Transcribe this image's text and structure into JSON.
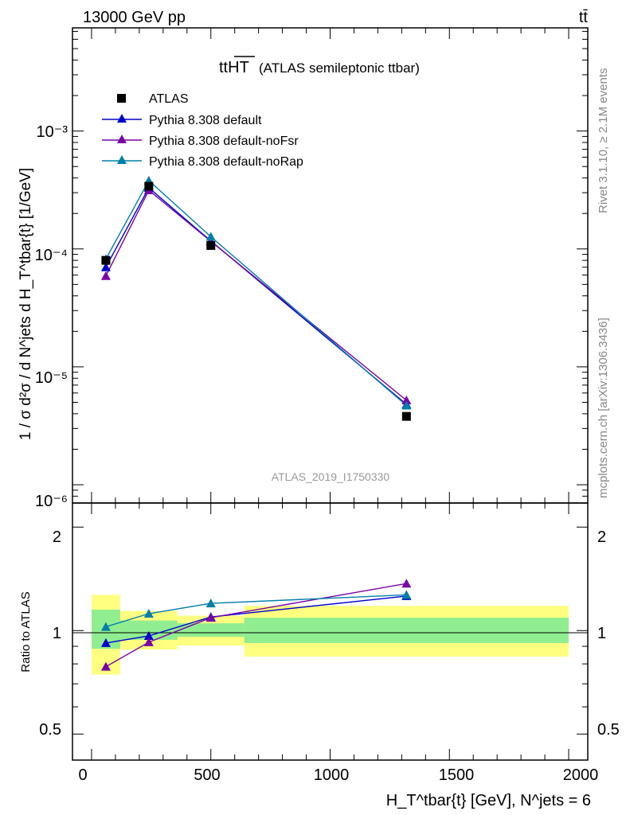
{
  "header": {
    "left": "13000 GeV pp",
    "right": "tt̄"
  },
  "side_text": {
    "rivet": "Rivet 3.1.10, ≥ 2.1M events",
    "mcplots": "mcplots.cern.ch [arXiv:1306.3436]"
  },
  "chart_data": [
    {
      "type": "line",
      "title": "tt",
      "title_overline": "HT",
      "subtitle": "(ATLAS semileptonic ttbar)",
      "watermark": "ATLAS_2019_I1750330",
      "ylabel": "1 / σ d²σ / d N^jets d H_T^tbar{t} [1/GeV]",
      "y_scale": "log",
      "ylim": [
        7e-07,
        0.0075
      ],
      "xlim": [
        -80,
        2080
      ],
      "y_tick_labels": [
        "10⁻³",
        "10⁻⁴",
        "10⁻⁵",
        "10⁻⁶"
      ],
      "legend_position": "top-left",
      "x": [
        60,
        240,
        500,
        1320
      ],
      "series": [
        {
          "name": "ATLAS",
          "color": "#000000",
          "marker": "square",
          "values": [
            8e-05,
            0.00034,
            0.000107,
            3.8e-06
          ]
        },
        {
          "name": "Pythia 8.308 default",
          "color": "#0000cc",
          "marker": "triangle",
          "values": [
            7e-05,
            0.00033,
            0.000117,
            4.8e-06
          ]
        },
        {
          "name": "Pythia 8.308 default-noFsr",
          "color": "#7a00a6",
          "marker": "triangle",
          "values": [
            5.9e-05,
            0.000315,
            0.000116,
            5.2e-06
          ]
        },
        {
          "name": "Pythia 8.308 default-noRap",
          "color": "#007fa8",
          "marker": "triangle",
          "values": [
            8.2e-05,
            0.00038,
            0.000127,
            4.7e-06
          ]
        }
      ]
    },
    {
      "type": "line",
      "ylabel": "Ratio to ATLAS",
      "y_scale": "log",
      "ylim": [
        0.42,
        2.35
      ],
      "xlim": [
        -80,
        2080
      ],
      "y_tick_labels": [
        "2",
        "1",
        "0.5"
      ],
      "x_tick_labels": [
        "0",
        "500",
        "1000",
        "1500",
        "2000"
      ],
      "xlabel": "H_T^tbar{t} [GeV], N^jets = 6",
      "x": [
        60,
        240,
        500,
        1320
      ],
      "bands": [
        {
          "x0": 0,
          "x1": 120,
          "stat": [
            0.885,
            1.15
          ],
          "total": [
            0.745,
            1.27
          ]
        },
        {
          "x0": 120,
          "x1": 360,
          "stat": [
            0.94,
            1.07
          ],
          "total": [
            0.88,
            1.14
          ]
        },
        {
          "x0": 360,
          "x1": 640,
          "stat": [
            0.96,
            1.05
          ],
          "total": [
            0.905,
            1.105
          ]
        },
        {
          "x0": 640,
          "x1": 2000,
          "stat": [
            0.92,
            1.09
          ],
          "total": [
            0.84,
            1.18
          ]
        }
      ],
      "series": [
        {
          "name": "Pythia 8.308 default",
          "color": "#0000cc",
          "values": [
            0.92,
            0.965,
            1.095,
            1.26
          ]
        },
        {
          "name": "Pythia 8.308 default-noFsr",
          "color": "#7a00a6",
          "values": [
            0.785,
            0.925,
            1.09,
            1.37
          ]
        },
        {
          "name": "Pythia 8.308 default-noRap",
          "color": "#007fa8",
          "values": [
            1.025,
            1.12,
            1.2,
            1.27
          ]
        }
      ]
    }
  ]
}
